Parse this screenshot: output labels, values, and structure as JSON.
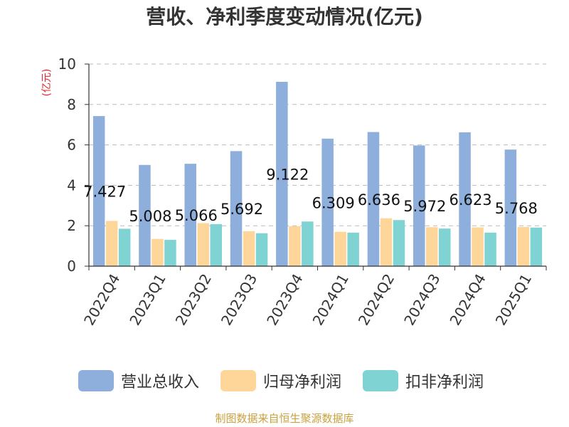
{
  "colors": {
    "revenue": "#8eaedb",
    "net_profit": "#ffd699",
    "net_profit_deducted": "#7fd3d3",
    "axis": "#333333",
    "grid": "#bbbbbb",
    "ylabel": "#e8212f",
    "source": "#c9a23f"
  },
  "chart_data": {
    "type": "bar",
    "title": "营收、净利季度变动情况(亿元)",
    "ylabel": "(亿元)",
    "xlabel": "",
    "ylim": [
      0,
      10
    ],
    "yticks": [
      "0",
      "2",
      "4",
      "6",
      "8",
      "10"
    ],
    "grid": true,
    "legend_position": "bottom",
    "categories": [
      "2022Q4",
      "2023Q1",
      "2023Q2",
      "2023Q3",
      "2023Q4",
      "2024Q1",
      "2024Q2",
      "2024Q3",
      "2024Q4",
      "2025Q1"
    ],
    "series": [
      {
        "name": "营业总收入",
        "values": [
          7.427,
          5.008,
          5.066,
          5.692,
          9.122,
          6.309,
          6.636,
          5.972,
          6.623,
          5.768
        ],
        "labels": [
          "7.427",
          "5.008",
          "5.066",
          "5.692",
          "9.122",
          "6.309",
          "6.636",
          "5.972",
          "6.623",
          "5.768"
        ]
      },
      {
        "name": "归母净利润",
        "values": [
          2.24,
          1.35,
          2.13,
          1.73,
          1.98,
          1.7,
          2.37,
          1.93,
          1.92,
          1.94
        ]
      },
      {
        "name": "扣非净利润",
        "values": [
          1.85,
          1.3,
          2.08,
          1.63,
          2.21,
          1.66,
          2.28,
          1.86,
          1.66,
          1.91
        ]
      }
    ]
  },
  "footer": {
    "source": "制图数据来自恒生聚源数据库"
  }
}
